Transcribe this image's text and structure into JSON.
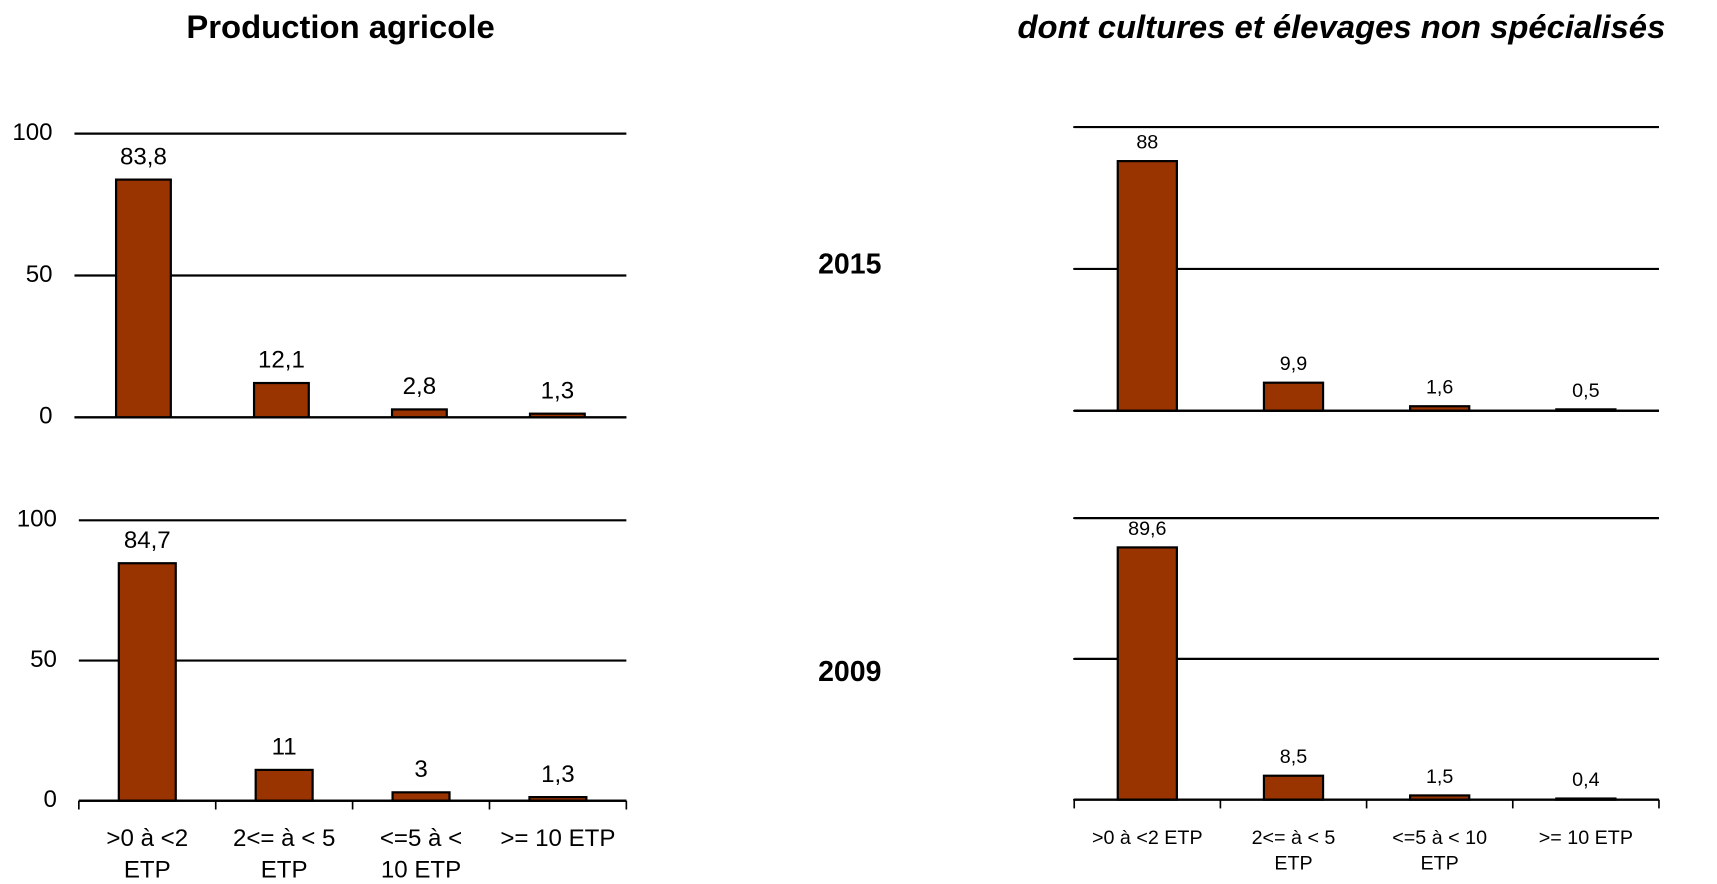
{
  "chart_data": [
    {
      "type": "bar",
      "title": "Production agricole",
      "values": [
        83.8,
        12.1,
        2.8,
        1.3
      ],
      "value_labels": [
        "83,8",
        "12,1",
        "2,8",
        "1,3"
      ],
      "color": "#993300",
      "ylim": [
        0,
        100
      ],
      "yticks": [
        0,
        50,
        100
      ],
      "ytick_labels": true,
      "grid": true
    },
    {
      "type": "bar",
      "title": "dont cultures et élevages non spécialisés",
      "label": "2015",
      "values": [
        88,
        9.9,
        1.6,
        0.5
      ],
      "value_labels": [
        "88",
        "9,9",
        "1,6",
        "0,5"
      ],
      "color": "#993300",
      "ylim": [
        0,
        100
      ],
      "yticks": [
        0,
        50,
        100
      ],
      "ytick_labels": false,
      "grid": true
    },
    {
      "type": "bar",
      "categories": [
        ">0 à <2 ETP",
        "2<= à < 5 ETP",
        "<=5 à < 10 ETP",
        ">= 10 ETP"
      ],
      "values": [
        84.7,
        11,
        3,
        1.3
      ],
      "value_labels": [
        "84,7",
        "11",
        "3",
        "1,3"
      ],
      "color": "#993300",
      "ylim": [
        0,
        100
      ],
      "yticks": [
        0,
        50,
        100
      ],
      "ytick_labels": true,
      "grid": true
    },
    {
      "type": "bar",
      "label": "2009",
      "categories": [
        ">0 à <2 ETP",
        "2<= à < 5 ETP",
        "<=5 à < 10 ETP",
        ">= 10 ETP"
      ],
      "values": [
        89.6,
        8.5,
        1.5,
        0.4
      ],
      "value_labels": [
        "89,6",
        "8,5",
        "1,5",
        "0,4"
      ],
      "color": "#993300",
      "ylim": [
        0,
        100
      ],
      "yticks": [
        0,
        50,
        100
      ],
      "ytick_labels": false,
      "grid": true
    }
  ]
}
